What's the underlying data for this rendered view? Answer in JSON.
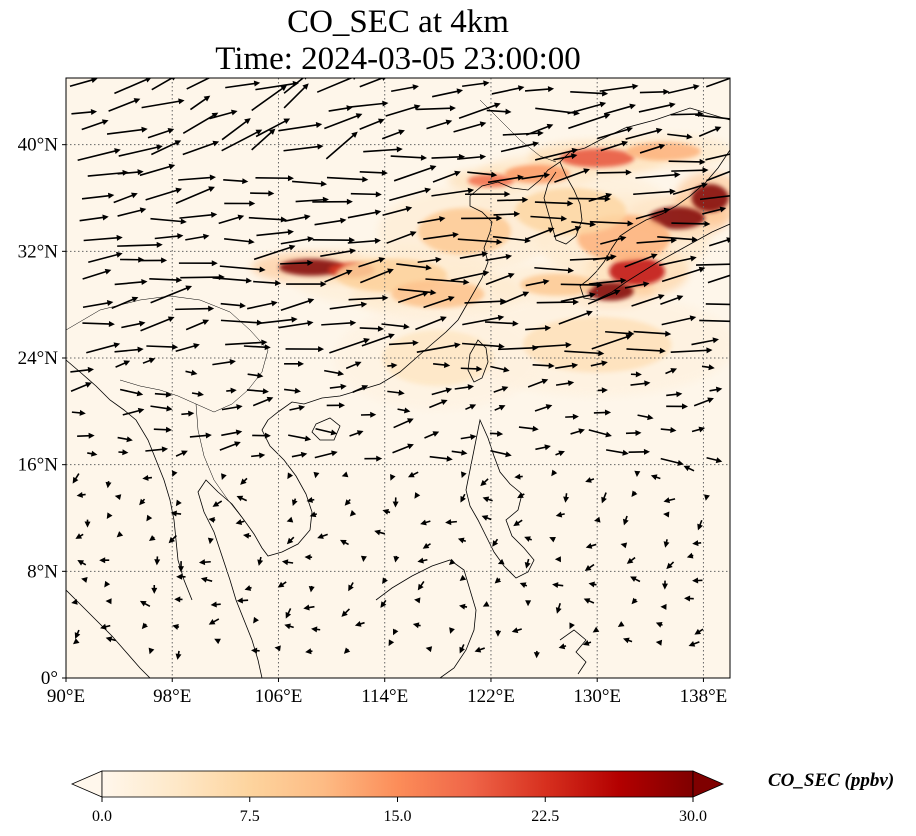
{
  "title": {
    "line1": "CO_SEC at 4km",
    "line2": "Time: 2024-03-05 23:00:00"
  },
  "map": {
    "projection": "PlateCarree",
    "lon_range": [
      90,
      140
    ],
    "lat_range": [
      0,
      45
    ],
    "gridlines": "dotted",
    "lon_ticks": [
      {
        "value": 90,
        "label": "90°E"
      },
      {
        "value": 98,
        "label": "98°E"
      },
      {
        "value": 106,
        "label": "106°E"
      },
      {
        "value": 114,
        "label": "114°E"
      },
      {
        "value": 122,
        "label": "122°E"
      },
      {
        "value": 130,
        "label": "130°E"
      },
      {
        "value": 138,
        "label": "138°E"
      }
    ],
    "lat_ticks": [
      {
        "value": 0,
        "label": "0°"
      },
      {
        "value": 8,
        "label": "8°N"
      },
      {
        "value": 16,
        "label": "16°N"
      },
      {
        "value": 24,
        "label": "24°N"
      },
      {
        "value": 32,
        "label": "32°N"
      },
      {
        "value": 40,
        "label": "40°N"
      }
    ],
    "plumes": [
      {
        "lon": 108.5,
        "lat": 30.8,
        "level": 30,
        "spread_lon": 3.5,
        "spread_lat": 0.9
      },
      {
        "lon": 111.5,
        "lat": 30.6,
        "level": 22,
        "spread_lon": 2.5,
        "spread_lat": 0.8
      },
      {
        "lon": 114.5,
        "lat": 30.2,
        "level": 8,
        "spread_lon": 6.0,
        "spread_lat": 1.8
      },
      {
        "lon": 118.0,
        "lat": 28.8,
        "level": 10,
        "spread_lon": 5.0,
        "spread_lat": 1.5
      },
      {
        "lon": 120.0,
        "lat": 33.5,
        "level": 9,
        "spread_lon": 5.0,
        "spread_lat": 2.5
      },
      {
        "lon": 122.0,
        "lat": 37.3,
        "level": 18,
        "spread_lon": 2.5,
        "spread_lat": 0.7
      },
      {
        "lon": 125.5,
        "lat": 37.8,
        "level": 14,
        "spread_lon": 3.5,
        "spread_lat": 1.0
      },
      {
        "lon": 130.0,
        "lat": 39.0,
        "level": 20,
        "spread_lon": 4.0,
        "spread_lat": 1.0
      },
      {
        "lon": 135.0,
        "lat": 39.5,
        "level": 12,
        "spread_lon": 4.0,
        "spread_lat": 1.0
      },
      {
        "lon": 136.0,
        "lat": 34.5,
        "level": 30,
        "spread_lon": 3.0,
        "spread_lat": 1.2
      },
      {
        "lon": 138.5,
        "lat": 36.0,
        "level": 30,
        "spread_lon": 2.0,
        "spread_lat": 1.5
      },
      {
        "lon": 131.0,
        "lat": 29.0,
        "level": 30,
        "spread_lon": 2.5,
        "spread_lat": 1.0
      },
      {
        "lon": 133.0,
        "lat": 30.5,
        "level": 25,
        "spread_lon": 3.0,
        "spread_lat": 1.5
      },
      {
        "lon": 132.0,
        "lat": 33.0,
        "level": 12,
        "spread_lon": 5.0,
        "spread_lat": 2.5
      },
      {
        "lon": 128.0,
        "lat": 35.0,
        "level": 7,
        "spread_lon": 6.0,
        "spread_lat": 2.5
      },
      {
        "lon": 127.0,
        "lat": 29.5,
        "level": 9,
        "spread_lon": 4.0,
        "spread_lat": 1.2
      },
      {
        "lon": 130.0,
        "lat": 25.0,
        "level": 5,
        "spread_lon": 8.0,
        "spread_lat": 3.0
      },
      {
        "lon": 118.0,
        "lat": 24.0,
        "level": 4,
        "spread_lon": 6.0,
        "spread_lat": 3.0
      }
    ]
  },
  "colorbar": {
    "label": "CO_SEC (ppbv)",
    "vmin": 0.0,
    "vmax": 30.0,
    "ticks": [
      {
        "value": 0.0,
        "label": "0.0"
      },
      {
        "value": 7.5,
        "label": "7.5"
      },
      {
        "value": 15.0,
        "label": "15.0"
      },
      {
        "value": 22.5,
        "label": "22.5"
      },
      {
        "value": 30.0,
        "label": "30.0"
      }
    ],
    "colormap": "OrRd",
    "colors": [
      "#fff7ec",
      "#fee8c8",
      "#fdd49e",
      "#fdbb84",
      "#fc8d59",
      "#ef6548",
      "#d7301f",
      "#b30000",
      "#7f0000"
    ],
    "extend": "both"
  },
  "wind": {
    "description_color": "#000000"
  }
}
